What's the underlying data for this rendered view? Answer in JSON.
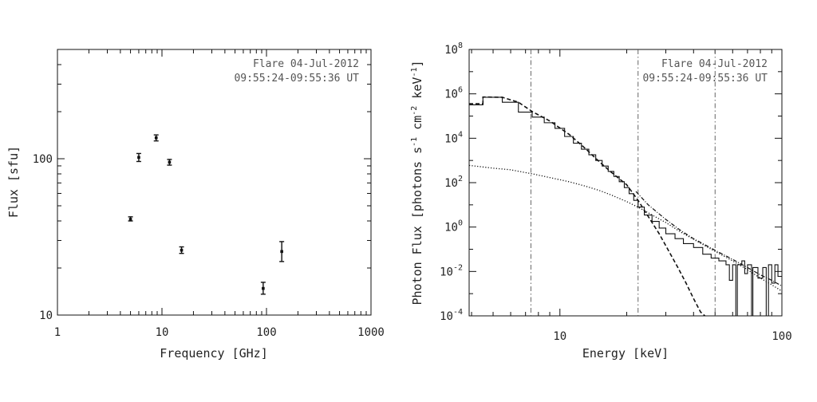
{
  "colors": {
    "ink": "#111111",
    "annotation": "#555555",
    "background": "#ffffff"
  },
  "chart_data": [
    {
      "type": "scatter",
      "name": "microwave-spectrum",
      "xlabel": "Frequency [GHz]",
      "ylabel": "Flux [sfu]",
      "xscale": "log",
      "yscale": "log",
      "xlim": [
        1,
        1000
      ],
      "ylim": [
        10,
        500
      ],
      "x_ticks": [
        {
          "value": 1,
          "label": "1"
        },
        {
          "value": 10,
          "label": "10"
        },
        {
          "value": 100,
          "label": "100"
        },
        {
          "value": 1000,
          "label": "1000"
        }
      ],
      "y_ticks": [
        {
          "value": 10,
          "label": "10"
        },
        {
          "value": 100,
          "label": "100"
        }
      ],
      "annotation": [
        "Flare 04-Jul-2012",
        "09:55:24-09:55:36 UT"
      ],
      "annotation_position": "top-right",
      "grid": false,
      "points": [
        {
          "x": 5.0,
          "y": 41,
          "err_low": 40,
          "err_high": 42.5
        },
        {
          "x": 6.0,
          "y": 102,
          "err_low": 96,
          "err_high": 108
        },
        {
          "x": 8.8,
          "y": 136,
          "err_low": 130,
          "err_high": 142
        },
        {
          "x": 11.8,
          "y": 95,
          "err_low": 91,
          "err_high": 99
        },
        {
          "x": 15.4,
          "y": 26,
          "err_low": 24.8,
          "err_high": 27.3
        },
        {
          "x": 93,
          "y": 14.8,
          "err_low": 13.6,
          "err_high": 16.2
        },
        {
          "x": 140,
          "y": 25.5,
          "err_low": 22,
          "err_high": 29.5
        }
      ]
    },
    {
      "type": "line",
      "name": "x-ray-spectrum",
      "xlabel": "Energy [keV]",
      "ylabel": "Photon Flux [photons s-1 cm-2 keV-1]",
      "ylabel_parts": [
        "Photon Flux [photons s",
        "-1",
        " cm",
        "-2",
        " keV",
        "-1",
        "]"
      ],
      "xscale": "log",
      "yscale": "log",
      "xlim": [
        3.9,
        100
      ],
      "ylim": [
        0.0001,
        100000000
      ],
      "x_ticks": [
        {
          "value": 10,
          "label": "10"
        },
        {
          "value": 100,
          "label": "100"
        }
      ],
      "y_ticks": [
        {
          "value": 0.0001,
          "base": "10",
          "exp": "-4"
        },
        {
          "value": 0.01,
          "base": "10",
          "exp": "-2"
        },
        {
          "value": 1,
          "base": "10",
          "exp": "0"
        },
        {
          "value": 100,
          "base": "10",
          "exp": "2"
        },
        {
          "value": 10000,
          "base": "10",
          "exp": "4"
        },
        {
          "value": 1000000,
          "base": "10",
          "exp": "6"
        },
        {
          "value": 100000000,
          "base": "10",
          "exp": "8"
        }
      ],
      "annotation": [
        "Flare 04-Jul-2012",
        "09:55:24-09:55:36 UT"
      ],
      "annotation_position": "top-right",
      "grid": false,
      "vlines": [
        7.4,
        22.5,
        50
      ],
      "series": [
        {
          "style": "solid-step",
          "points": [
            [
              3.9,
              320000
            ],
            [
              4.5,
              320000
            ],
            [
              4.5,
              700000
            ],
            [
              5.5,
              700000
            ],
            [
              5.5,
              420000
            ],
            [
              6.5,
              420000
            ],
            [
              6.5,
              150000
            ],
            [
              7.5,
              150000
            ],
            [
              7.5,
              90000
            ],
            [
              8.5,
              90000
            ],
            [
              8.5,
              50000
            ],
            [
              9.5,
              50000
            ],
            [
              9.5,
              28000
            ],
            [
              10.5,
              28000
            ],
            [
              10.5,
              12000
            ],
            [
              11.5,
              12000
            ],
            [
              11.5,
              6000
            ],
            [
              12.5,
              6000
            ],
            [
              12.5,
              3200
            ],
            [
              13.5,
              3200
            ],
            [
              13.5,
              1800
            ],
            [
              14.5,
              1800
            ],
            [
              14.5,
              1000
            ],
            [
              15.5,
              1000
            ],
            [
              15.5,
              560
            ],
            [
              16.5,
              560
            ],
            [
              16.5,
              320
            ],
            [
              17.5,
              320
            ],
            [
              17.5,
              190
            ],
            [
              18.5,
              190
            ],
            [
              18.5,
              110
            ],
            [
              19.5,
              110
            ],
            [
              19.5,
              60
            ],
            [
              20.5,
              60
            ],
            [
              20.5,
              32
            ],
            [
              21.5,
              32
            ],
            [
              21.5,
              16
            ],
            [
              22.5,
              16
            ],
            [
              22.5,
              8
            ],
            [
              24,
              8
            ],
            [
              24,
              3.5
            ],
            [
              26,
              3.5
            ],
            [
              26,
              1.8
            ],
            [
              28,
              1.8
            ],
            [
              28,
              0.9
            ],
            [
              30,
              0.9
            ],
            [
              30,
              0.5
            ],
            [
              33,
              0.5
            ],
            [
              33,
              0.3
            ],
            [
              36,
              0.3
            ],
            [
              36,
              0.18
            ],
            [
              40,
              0.18
            ],
            [
              40,
              0.12
            ],
            [
              44,
              0.12
            ],
            [
              44,
              0.06
            ],
            [
              48,
              0.06
            ],
            [
              48,
              0.04
            ],
            [
              52,
              0.04
            ],
            [
              52,
              0.03
            ],
            [
              56,
              0.03
            ],
            [
              56,
              0.02
            ],
            [
              58,
              0.02
            ],
            [
              58,
              0.004
            ],
            [
              60,
              0.004
            ],
            [
              60,
              0.02
            ],
            [
              62,
              0.02
            ],
            [
              62,
              0.0001
            ],
            [
              63,
              0.0001
            ],
            [
              63,
              0.02
            ],
            [
              66,
              0.02
            ],
            [
              66,
              0.03
            ],
            [
              68,
              0.03
            ],
            [
              68,
              0.008
            ],
            [
              70,
              0.008
            ],
            [
              70,
              0.02
            ],
            [
              73,
              0.02
            ],
            [
              73,
              0.0001
            ],
            [
              74,
              0.0001
            ],
            [
              74,
              0.015
            ],
            [
              78,
              0.015
            ],
            [
              78,
              0.005
            ],
            [
              82,
              0.005
            ],
            [
              82,
              0.015
            ],
            [
              85,
              0.015
            ],
            [
              85,
              0.0001
            ],
            [
              87,
              0.0001
            ],
            [
              87,
              0.02
            ],
            [
              90,
              0.02
            ],
            [
              90,
              0.003
            ],
            [
              93,
              0.003
            ],
            [
              93,
              0.02
            ],
            [
              96,
              0.02
            ],
            [
              96,
              0.006
            ],
            [
              100,
              0.006
            ]
          ]
        },
        {
          "style": "dashed",
          "points": [
            [
              3.9,
              360000
            ],
            [
              4.5,
              360000
            ],
            [
              4.5,
              720000
            ],
            [
              5.5,
              700000
            ],
            [
              6.5,
              420000
            ],
            [
              7.5,
              160000
            ],
            [
              9,
              60000
            ],
            [
              11,
              15000
            ],
            [
              13,
              3500
            ],
            [
              15,
              900
            ],
            [
              17,
              300
            ],
            [
              20,
              80
            ],
            [
              22.5,
              16
            ],
            [
              25,
              3
            ],
            [
              28,
              0.5
            ],
            [
              31,
              0.08
            ],
            [
              34,
              0.015
            ],
            [
              37,
              0.003
            ],
            [
              40,
              0.0006
            ],
            [
              43,
              0.00015
            ],
            [
              45,
              0.0001
            ]
          ]
        },
        {
          "style": "dotted",
          "points": [
            [
              3.9,
              600
            ],
            [
              5,
              450
            ],
            [
              6,
              380
            ],
            [
              7.5,
              250
            ],
            [
              9,
              170
            ],
            [
              11,
              110
            ],
            [
              13,
              70
            ],
            [
              15,
              45
            ],
            [
              17,
              28
            ],
            [
              20,
              14
            ],
            [
              23,
              7
            ],
            [
              26,
              3.5
            ],
            [
              30,
              1.6
            ],
            [
              35,
              0.6
            ],
            [
              40,
              0.28
            ],
            [
              50,
              0.08
            ],
            [
              60,
              0.03
            ],
            [
              70,
              0.012
            ],
            [
              80,
              0.005
            ],
            [
              90,
              0.0025
            ],
            [
              100,
              0.0013
            ]
          ]
        },
        {
          "style": "dash-dot",
          "points": [
            [
              22,
              40
            ],
            [
              25,
              10
            ],
            [
              30,
              2.2
            ],
            [
              35,
              0.7
            ],
            [
              40,
              0.3
            ],
            [
              50,
              0.09
            ],
            [
              60,
              0.035
            ],
            [
              70,
              0.015
            ],
            [
              80,
              0.007
            ],
            [
              90,
              0.004
            ],
            [
              100,
              0.0022
            ]
          ]
        }
      ]
    }
  ]
}
